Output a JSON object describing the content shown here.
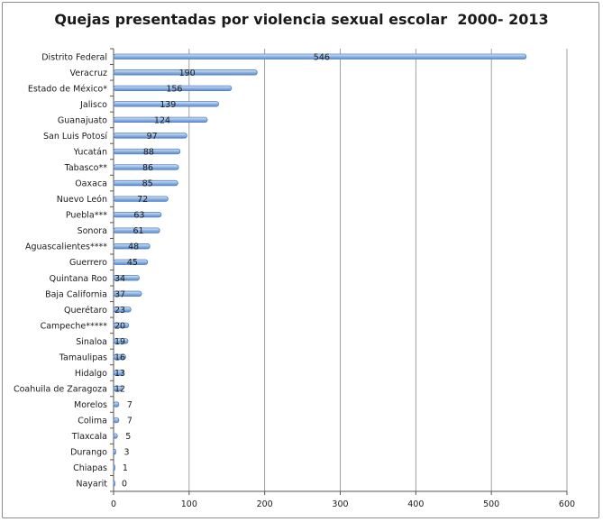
{
  "chart_data": {
    "type": "bar",
    "orientation": "horizontal",
    "title": "Quejas presentadas por violencia sexual escolar  2000- 2013",
    "xlabel": "",
    "ylabel": "",
    "xlim": [
      0,
      600
    ],
    "ticks": [
      0,
      100,
      200,
      300,
      400,
      500,
      600
    ],
    "grid": true,
    "legend": "none",
    "bar_color": "#8fb4e3",
    "bar_edge_color": "#4f7fbf",
    "categories": [
      "Distrito Federal",
      "Veracruz",
      "Estado de México*",
      "Jalisco",
      "Guanajuato",
      "San Luis Potosí",
      "Yucatán",
      "Tabasco**",
      "Oaxaca",
      "Nuevo León",
      "Puebla***",
      "Sonora",
      "Aguascalientes****",
      "Guerrero",
      "Quintana Roo",
      "Baja California",
      "Querétaro",
      "Campeche*****",
      "Sinaloa",
      "Tamaulipas",
      "Hidalgo",
      "Coahuila de Zaragoza",
      "Morelos",
      "Colima",
      "Tlaxcala",
      "Durango",
      "Chiapas",
      "Nayarit"
    ],
    "values": [
      546,
      190,
      156,
      139,
      124,
      97,
      88,
      86,
      85,
      72,
      63,
      61,
      48,
      45,
      34,
      37,
      23,
      20,
      19,
      16,
      13,
      12,
      7,
      7,
      5,
      3,
      1,
      0
    ]
  }
}
